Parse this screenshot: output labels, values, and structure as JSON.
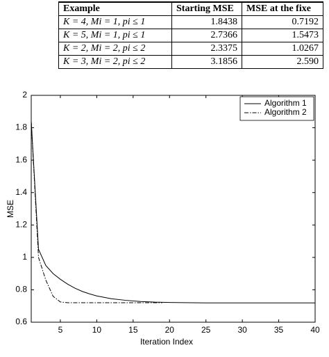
{
  "table": {
    "headers": [
      "Example",
      "Starting MSE",
      "MSE at the fixe"
    ],
    "rows": [
      [
        "K = 4, Mi = 1, pi ≤ 1",
        "1.8438",
        "0.7192"
      ],
      [
        "K = 5, Mi = 1, pi ≤ 1",
        "2.7366",
        "1.5473"
      ],
      [
        "K = 2, Mi = 2, pi ≤ 2",
        "2.3375",
        "1.0267"
      ],
      [
        "K = 3, Mi = 2, pi ≤ 2",
        "3.1856",
        "2.590"
      ]
    ]
  },
  "chart_data": {
    "type": "line",
    "xlabel": "Iteration Index",
    "ylabel": "MSE",
    "xlim": [
      1,
      40
    ],
    "xticks": [
      5,
      10,
      15,
      20,
      25,
      30,
      35,
      40
    ],
    "ylim": [
      0.6,
      2
    ],
    "yticks": [
      0.6,
      0.8,
      1,
      1.2,
      1.4,
      1.6,
      1.8,
      2
    ],
    "grid": false,
    "legend": "upper right",
    "series": [
      {
        "name": "Algorithm 1",
        "color": "#000000",
        "line_style": "solid",
        "x": [
          1,
          2,
          3,
          4,
          5,
          6,
          7,
          8,
          9,
          10,
          12,
          14,
          16,
          18,
          20,
          25,
          30,
          35,
          40
        ],
        "values": [
          1.84,
          1.05,
          0.95,
          0.9,
          0.865,
          0.835,
          0.81,
          0.79,
          0.775,
          0.762,
          0.745,
          0.735,
          0.728,
          0.724,
          0.722,
          0.7192,
          0.7192,
          0.7192,
          0.7192
        ]
      },
      {
        "name": "Algorithm 2",
        "color": "#000000",
        "line_style": "dashdot",
        "x": [
          1,
          2,
          3,
          4,
          5,
          6,
          10,
          15,
          19
        ],
        "values": [
          1.84,
          1.0,
          0.86,
          0.76,
          0.725,
          0.72,
          0.72,
          0.72,
          0.72
        ]
      }
    ]
  }
}
